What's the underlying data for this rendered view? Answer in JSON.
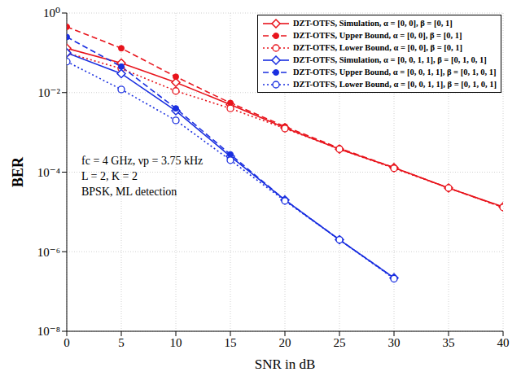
{
  "chart_data": {
    "type": "line",
    "x_label": "SNR in dB",
    "y_label": "BER",
    "annotations": [
      "fc = 4 GHz, νp = 3.75 kHz",
      "L = 2, K = 2",
      "BPSK, ML detection"
    ],
    "x": [
      0,
      5,
      10,
      15,
      20,
      25,
      30,
      35,
      40
    ],
    "xlim": [
      0,
      40
    ],
    "xticks": [
      0,
      5,
      10,
      15,
      20,
      25,
      30,
      35,
      40
    ],
    "ylim": [
      1e-08,
      1
    ],
    "yticks": [
      {
        "value": 1,
        "label": "10⁰"
      },
      {
        "value": 0.01,
        "label": "10⁻²"
      },
      {
        "value": 0.0001,
        "label": "10⁻⁴"
      },
      {
        "value": 1e-06,
        "label": "10⁻⁶"
      },
      {
        "value": 1e-08,
        "label": "10⁻⁸"
      }
    ],
    "log": "y",
    "grid": true,
    "legend": "top-right",
    "series": [
      {
        "name": "DZT-OTFS, Simulation, α = [0, 0], β = [0, 1]",
        "color": "#e8141c",
        "marker": "diamond",
        "line_style": "solid",
        "values": [
          0.13,
          0.055,
          0.018,
          0.005,
          0.0013,
          0.00038,
          0.00013,
          4e-05,
          1.35e-05
        ]
      },
      {
        "name": "DZT-OTFS, Upper Bound, α = [0, 0], β = [0, 1]",
        "color": "#e8141c",
        "marker": "dot",
        "line_style": "dashed",
        "values": [
          0.45,
          0.13,
          0.025,
          0.0055,
          0.0014,
          0.0004,
          0.00013,
          4e-05,
          1.3e-05
        ]
      },
      {
        "name": "DZT-OTFS, Lower Bound, α = [0, 0], β = [0, 1]",
        "color": "#e8141c",
        "marker": "circle",
        "line_style": "dotted",
        "values": [
          0.1,
          0.04,
          0.011,
          0.004,
          0.00125,
          0.00038,
          0.000125,
          4e-05,
          1.3e-05
        ]
      },
      {
        "name": "DZT-OTFS, Simulation, α = [0, 0, 1, 1], β = [0, 1, 0, 1]",
        "color": "#1a2fe0",
        "marker": "diamond",
        "line_style": "solid",
        "values": [
          0.1,
          0.03,
          0.0035,
          0.00025,
          2e-05,
          2e-06,
          2.2e-07,
          null,
          null
        ]
      },
      {
        "name": "DZT-OTFS, Upper Bound, α = [0, 0, 1, 1], β = [0, 1, 0, 1]",
        "color": "#1a2fe0",
        "marker": "dot",
        "line_style": "dashed",
        "values": [
          0.25,
          0.045,
          0.004,
          0.00028,
          2e-05,
          2e-06,
          2.2e-07,
          null,
          null
        ]
      },
      {
        "name": "DZT-OTFS, Lower Bound, α = [0, 0, 1, 1], β = [0, 1, 0, 1]",
        "color": "#1a2fe0",
        "marker": "circle",
        "line_style": "dotted",
        "values": [
          0.06,
          0.012,
          0.002,
          0.0002,
          1.9e-05,
          2e-06,
          2.1e-07,
          null,
          null
        ]
      }
    ]
  }
}
